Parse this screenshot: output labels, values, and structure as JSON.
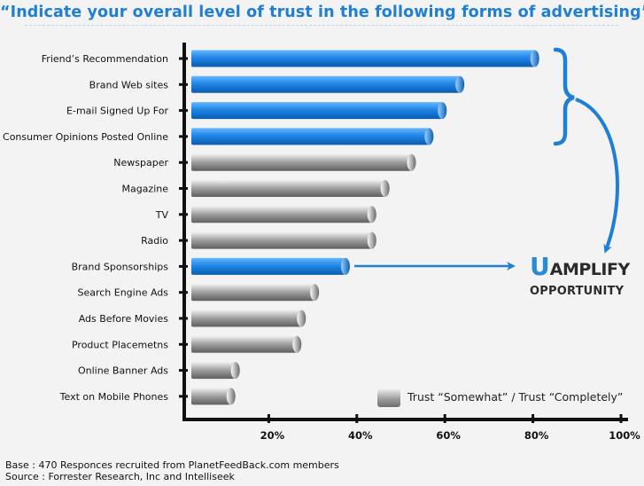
{
  "title": "“Indicate your overall level of trust in the following forms of advertising”",
  "chart_data": {
    "type": "bar",
    "orientation": "horizontal",
    "categories": [
      "Friend’s Recommendation",
      "Brand Web sites",
      "E-mail Signed Up For",
      "Consumer Opinions Posted Online",
      "Newspaper",
      "Magazine",
      "TV",
      "Radio",
      "Brand Sponsorships",
      "Search Engine Ads",
      "Ads Before Movies",
      "Product Placemetns",
      "Online Banner Ads",
      "Text on Mobile Phones"
    ],
    "values": [
      78,
      61,
      57,
      54,
      50,
      44,
      41,
      41,
      35,
      28,
      25,
      24,
      10,
      9
    ],
    "highlighted": [
      true,
      true,
      true,
      true,
      false,
      false,
      false,
      false,
      true,
      false,
      false,
      false,
      false,
      false
    ],
    "xticks": [
      "20%",
      "40%",
      "60%",
      "80%",
      "100%"
    ],
    "xlim": [
      0,
      100
    ],
    "legend": "Trust “Somewhat” / Trust “Completely”",
    "colors": {
      "highlight": "#1f86e6",
      "normal": "#8e8e8e",
      "accent": "#1f7fd4"
    }
  },
  "callout": {
    "big_letter": "U",
    "line1_rest": "AMPLIFY",
    "line2": "OPPORTUNITY"
  },
  "footer": {
    "base": "Base : 470 Responces recruited from PlanetFeedBack.com members",
    "source": "Source : Forrester Research, Inc and Intelliseek"
  }
}
